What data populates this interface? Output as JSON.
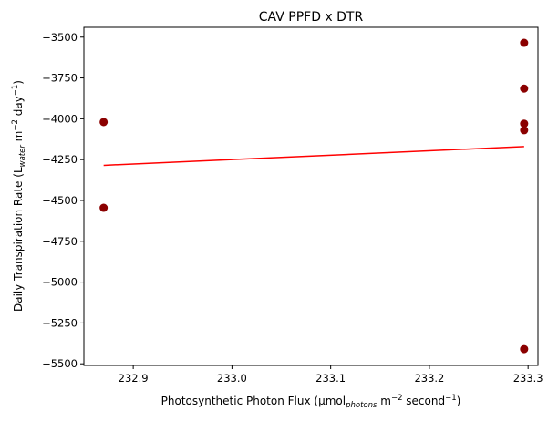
{
  "chart_data": {
    "type": "scatter",
    "title": "CAV PPFD x DTR",
    "xlabel": {
      "main": "Photosynthetic Photon Flux (μmol",
      "sub": "photons",
      "unit": " m",
      "unit_sup": "−2",
      "rest": " second",
      "rest_sup": "−1",
      "close": ")"
    },
    "ylabel": {
      "main": "Daily Transpiration Rate (L",
      "sub": "water",
      "unit": " m",
      "unit_sup": "−2",
      "rest": " day",
      "rest_sup": "−1",
      "close": ")"
    },
    "xlim": [
      232.85,
      233.31
    ],
    "ylim": [
      -5510,
      -3440
    ],
    "x_ticks": [
      232.9,
      233.0,
      233.1,
      233.2,
      233.3
    ],
    "x_tick_labels": [
      "232.9",
      "233.0",
      "233.1",
      "233.2",
      "233.3"
    ],
    "y_ticks": [
      -3500,
      -3750,
      -4000,
      -4250,
      -4500,
      -4750,
      -5000,
      -5250,
      -5500
    ],
    "y_tick_labels": [
      "−3500",
      "−3750",
      "−4000",
      "−4250",
      "−4500",
      "−4750",
      "−5000",
      "−5250",
      "−5500"
    ],
    "points": [
      {
        "x": 232.87,
        "y": -4020
      },
      {
        "x": 232.87,
        "y": -4545
      },
      {
        "x": 233.296,
        "y": -3535
      },
      {
        "x": 233.296,
        "y": -3815
      },
      {
        "x": 233.296,
        "y": -4030
      },
      {
        "x": 233.296,
        "y": -4070
      },
      {
        "x": 233.296,
        "y": -5410
      }
    ],
    "fit_line": {
      "x": [
        232.87,
        233.296
      ],
      "y": [
        -4285,
        -4170
      ]
    },
    "colors": {
      "points": "#8b0000",
      "fit_line": "#ff0000",
      "axes": "#000000"
    },
    "grid": false,
    "legend": "none"
  }
}
